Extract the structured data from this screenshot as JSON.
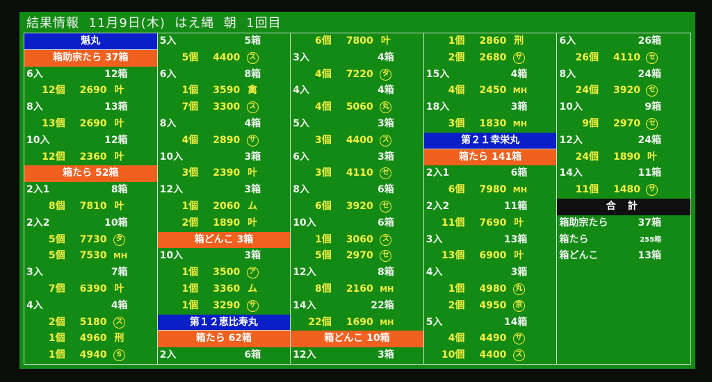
{
  "title": "結果情報  11月9日(木)  はえ縄  朝  1回目",
  "colors": {
    "background": "#128a14",
    "ship_header": "#0a1fc8",
    "category_header": "#f0601e",
    "total_header": "#101010",
    "lot_text": "#f4f040",
    "size_text": "#f0f4f0"
  },
  "columns": [
    {
      "rows": [
        {
          "type": "ship",
          "text": "魁丸"
        },
        {
          "type": "cat",
          "text": "箱助宗たら 37箱"
        },
        {
          "type": "size",
          "label": "6入",
          "count": "12箱"
        },
        {
          "type": "lot",
          "qty": "12個",
          "price": "2690",
          "mark": "叶",
          "circle": false
        },
        {
          "type": "size",
          "label": "8入",
          "count": "13箱"
        },
        {
          "type": "lot",
          "qty": "13個",
          "price": "2690",
          "mark": "叶",
          "circle": false
        },
        {
          "type": "size",
          "label": "10入",
          "count": "12箱"
        },
        {
          "type": "lot",
          "qty": "12個",
          "price": "2360",
          "mark": "叶",
          "circle": false
        },
        {
          "type": "cat",
          "text": "箱たら 52箱"
        },
        {
          "type": "size",
          "label": "2入1",
          "count": "8箱"
        },
        {
          "type": "lot",
          "qty": "8個",
          "price": "7810",
          "mark": "叶",
          "circle": false
        },
        {
          "type": "size",
          "label": "2入2",
          "count": "10箱"
        },
        {
          "type": "lot",
          "qty": "5個",
          "price": "7730",
          "mark": "タ",
          "circle": true
        },
        {
          "type": "lot",
          "qty": "5個",
          "price": "7530",
          "mark": "MH",
          "circle": false
        },
        {
          "type": "size",
          "label": "3入",
          "count": "7箱"
        },
        {
          "type": "lot",
          "qty": "7個",
          "price": "6390",
          "mark": "叶",
          "circle": false
        },
        {
          "type": "size",
          "label": "4入",
          "count": "4箱"
        },
        {
          "type": "lot",
          "qty": "2個",
          "price": "5180",
          "mark": "ス",
          "circle": true
        },
        {
          "type": "lot",
          "qty": "1個",
          "price": "4960",
          "mark": "刑",
          "circle": false
        },
        {
          "type": "lot",
          "qty": "1個",
          "price": "4940",
          "mark": "S",
          "circle": true
        }
      ]
    },
    {
      "rows": [
        {
          "type": "size",
          "label": "5入",
          "count": "5箱"
        },
        {
          "type": "lot",
          "qty": "5個",
          "price": "4400",
          "mark": "ス",
          "circle": true
        },
        {
          "type": "size",
          "label": "6入",
          "count": "8箱"
        },
        {
          "type": "lot",
          "qty": "1個",
          "price": "3590",
          "mark": "禽",
          "circle": false
        },
        {
          "type": "lot",
          "qty": "7個",
          "price": "3300",
          "mark": "ス",
          "circle": true
        },
        {
          "type": "size",
          "label": "8入",
          "count": "4箱"
        },
        {
          "type": "lot",
          "qty": "4個",
          "price": "2890",
          "mark": "サ",
          "circle": true
        },
        {
          "type": "size",
          "label": "10入",
          "count": "3箱"
        },
        {
          "type": "lot",
          "qty": "3個",
          "price": "2390",
          "mark": "叶",
          "circle": false
        },
        {
          "type": "size",
          "label": "12入",
          "count": "3箱"
        },
        {
          "type": "lot",
          "qty": "1個",
          "price": "2060",
          "mark": "ム",
          "circle": false
        },
        {
          "type": "lot",
          "qty": "2個",
          "price": "1890",
          "mark": "叶",
          "circle": false
        },
        {
          "type": "cat",
          "text": "箱どんこ 3箱"
        },
        {
          "type": "size",
          "label": "10入",
          "count": "3箱"
        },
        {
          "type": "lot",
          "qty": "1個",
          "price": "3500",
          "mark": "ア",
          "circle": true
        },
        {
          "type": "lot",
          "qty": "1個",
          "price": "3360",
          "mark": "ム",
          "circle": false
        },
        {
          "type": "lot",
          "qty": "1個",
          "price": "3290",
          "mark": "サ",
          "circle": true
        },
        {
          "type": "ship",
          "text": "第１２恵比寿丸"
        },
        {
          "type": "cat",
          "text": "箱たら 62箱"
        },
        {
          "type": "size",
          "label": "2入",
          "count": "6箱"
        }
      ]
    },
    {
      "rows": [
        {
          "type": "lot",
          "qty": "6個",
          "price": "7800",
          "mark": "叶",
          "circle": false
        },
        {
          "type": "size",
          "label": "3入",
          "count": "4箱"
        },
        {
          "type": "lot",
          "qty": "4個",
          "price": "7220",
          "mark": "タ",
          "circle": true
        },
        {
          "type": "size",
          "label": "4入",
          "count": "4箱"
        },
        {
          "type": "lot",
          "qty": "4個",
          "price": "5060",
          "mark": "丸",
          "circle": true
        },
        {
          "type": "size",
          "label": "5入",
          "count": "3箱"
        },
        {
          "type": "lot",
          "qty": "3個",
          "price": "4400",
          "mark": "ス",
          "circle": true
        },
        {
          "type": "size",
          "label": "6入",
          "count": "3箱"
        },
        {
          "type": "lot",
          "qty": "3個",
          "price": "4110",
          "mark": "セ",
          "circle": true
        },
        {
          "type": "size",
          "label": "8入",
          "count": "6箱"
        },
        {
          "type": "lot",
          "qty": "6個",
          "price": "3920",
          "mark": "セ",
          "circle": true
        },
        {
          "type": "size",
          "label": "10入",
          "count": "6箱"
        },
        {
          "type": "lot",
          "qty": "1個",
          "price": "3060",
          "mark": "ス",
          "circle": true
        },
        {
          "type": "lot",
          "qty": "5個",
          "price": "2970",
          "mark": "セ",
          "circle": true
        },
        {
          "type": "size",
          "label": "12入",
          "count": "8箱"
        },
        {
          "type": "lot",
          "qty": "8個",
          "price": "2160",
          "mark": "MH",
          "circle": false
        },
        {
          "type": "size",
          "label": "14入",
          "count": "22箱"
        },
        {
          "type": "lot",
          "qty": "22個",
          "price": "1690",
          "mark": "MH",
          "circle": false
        },
        {
          "type": "cat",
          "text": "箱どんこ 10箱"
        },
        {
          "type": "size",
          "label": "12入",
          "count": "3箱"
        }
      ]
    },
    {
      "rows": [
        {
          "type": "lot",
          "qty": "1個",
          "price": "2860",
          "mark": "刑",
          "circle": false
        },
        {
          "type": "lot",
          "qty": "2個",
          "price": "2680",
          "mark": "サ",
          "circle": true
        },
        {
          "type": "size",
          "label": "15入",
          "count": "4箱"
        },
        {
          "type": "lot",
          "qty": "4個",
          "price": "2450",
          "mark": "MH",
          "circle": false
        },
        {
          "type": "size",
          "label": "18入",
          "count": "3箱"
        },
        {
          "type": "lot",
          "qty": "3個",
          "price": "1830",
          "mark": "MH",
          "circle": false
        },
        {
          "type": "ship",
          "text": "第２１幸栄丸"
        },
        {
          "type": "cat",
          "text": "箱たら 141箱"
        },
        {
          "type": "size",
          "label": "2入1",
          "count": "6箱"
        },
        {
          "type": "lot",
          "qty": "6個",
          "price": "7980",
          "mark": "MH",
          "circle": false
        },
        {
          "type": "size",
          "label": "2入2",
          "count": "11箱"
        },
        {
          "type": "lot",
          "qty": "11個",
          "price": "7690",
          "mark": "叶",
          "circle": false
        },
        {
          "type": "size",
          "label": "3入",
          "count": "13箱"
        },
        {
          "type": "lot",
          "qty": "13個",
          "price": "6900",
          "mark": "叶",
          "circle": false
        },
        {
          "type": "size",
          "label": "4入",
          "count": "3箱"
        },
        {
          "type": "lot",
          "qty": "1個",
          "price": "4980",
          "mark": "丸",
          "circle": true
        },
        {
          "type": "lot",
          "qty": "2個",
          "price": "4950",
          "mark": "京",
          "circle": true
        },
        {
          "type": "size",
          "label": "5入",
          "count": "14箱"
        },
        {
          "type": "lot",
          "qty": "4個",
          "price": "4490",
          "mark": "サ",
          "circle": true
        },
        {
          "type": "lot",
          "qty": "10個",
          "price": "4400",
          "mark": "ス",
          "circle": true
        }
      ]
    },
    {
      "rows": [
        {
          "type": "size",
          "label": "6入",
          "count": "26箱"
        },
        {
          "type": "lot",
          "qty": "26個",
          "price": "4110",
          "mark": "セ",
          "circle": true
        },
        {
          "type": "size",
          "label": "8入",
          "count": "24箱"
        },
        {
          "type": "lot",
          "qty": "24個",
          "price": "3920",
          "mark": "セ",
          "circle": true
        },
        {
          "type": "size",
          "label": "10入",
          "count": "9箱"
        },
        {
          "type": "lot",
          "qty": "9個",
          "price": "2970",
          "mark": "セ",
          "circle": true
        },
        {
          "type": "size",
          "label": "12入",
          "count": "24箱"
        },
        {
          "type": "lot",
          "qty": "24個",
          "price": "1890",
          "mark": "叶",
          "circle": false
        },
        {
          "type": "size",
          "label": "14入",
          "count": "11箱"
        },
        {
          "type": "lot",
          "qty": "11個",
          "price": "1480",
          "mark": "サ",
          "circle": true
        },
        {
          "type": "tothdr",
          "text": "合 計"
        },
        {
          "type": "total",
          "label": "箱助宗たら",
          "count": "37箱"
        },
        {
          "type": "total",
          "label": "箱たら",
          "count": "255箱",
          "small": true
        },
        {
          "type": "total",
          "label": "箱どんこ",
          "count": "13箱"
        }
      ]
    }
  ]
}
